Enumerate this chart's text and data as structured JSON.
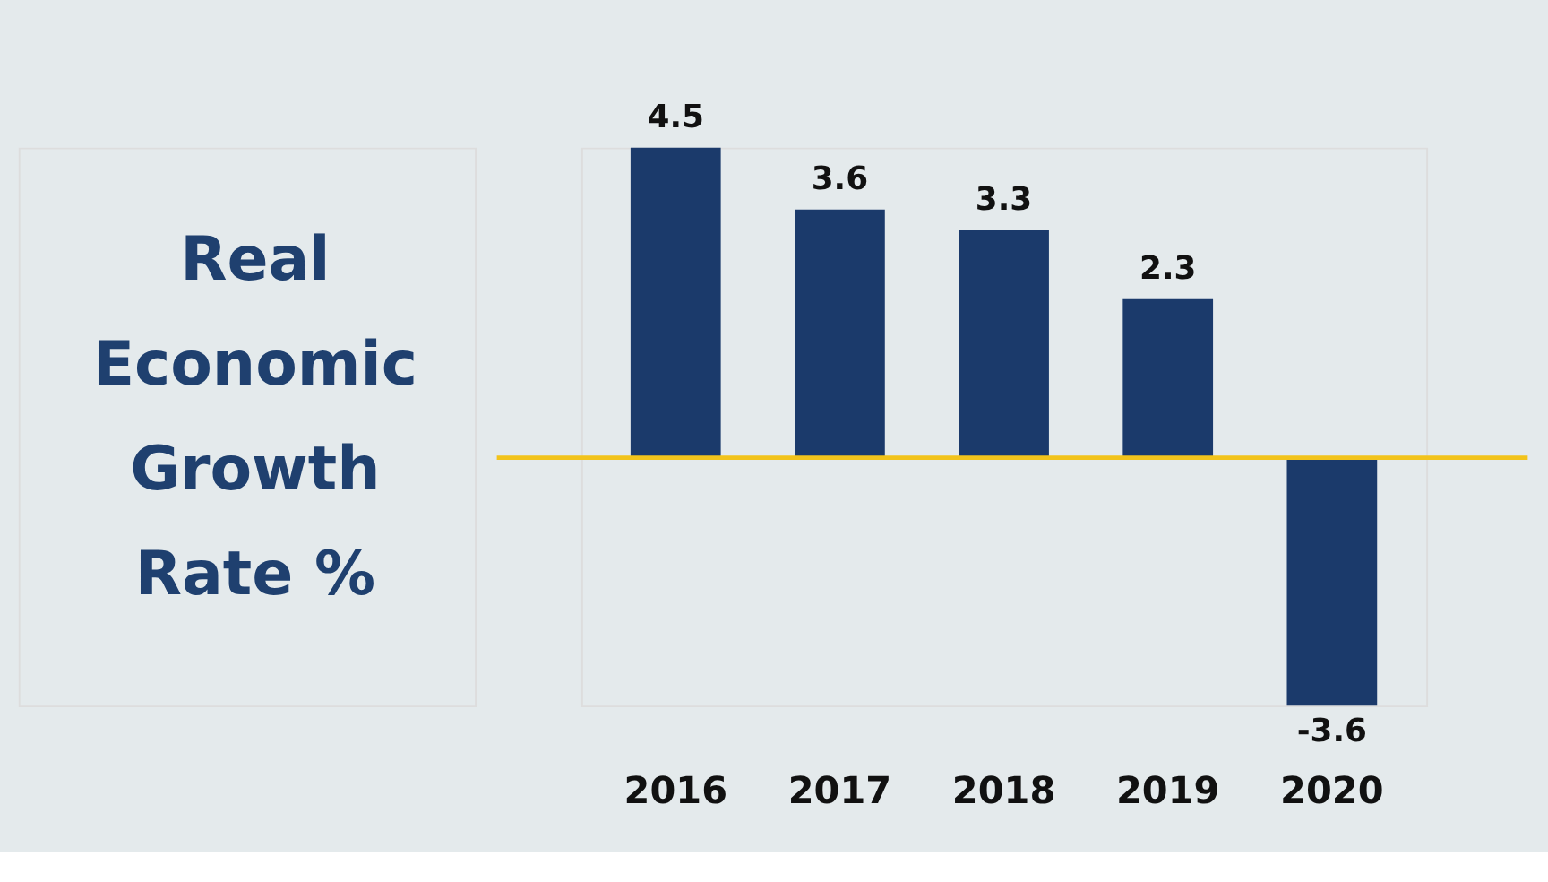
{
  "chart_data": {
    "type": "bar",
    "title": "Real Economic Growth Rate %",
    "categories": [
      "2016",
      "2017",
      "2018",
      "2019",
      "2020"
    ],
    "values": [
      4.5,
      3.6,
      3.3,
      2.3,
      -3.6
    ],
    "color": "#1b3a6b",
    "data_labels": true,
    "grid": false,
    "ref_lines": [
      {
        "axis": "y",
        "value": 0,
        "color": "#f2c31b"
      }
    ]
  }
}
